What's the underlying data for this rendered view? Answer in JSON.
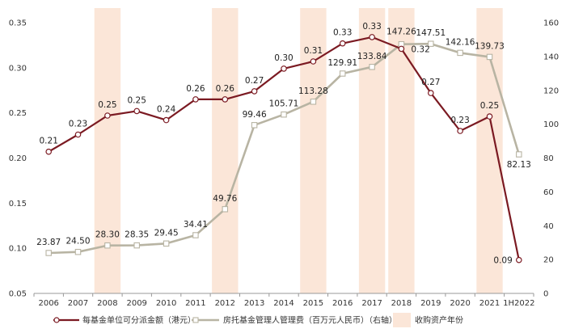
{
  "chart_data": {
    "type": "line",
    "categories": [
      "2006",
      "2007",
      "2008",
      "2009",
      "2010",
      "2011",
      "2012",
      "2013",
      "2014",
      "2015",
      "2016",
      "2017",
      "2018",
      "2019",
      "2020",
      "2021",
      "1H2022"
    ],
    "series": [
      {
        "name": "每基金单位可分派金额（港元）",
        "axis": "left",
        "color": "#7b1a22",
        "marker": "circle",
        "values": [
          0.21,
          0.23,
          0.25,
          0.25,
          0.24,
          0.26,
          0.26,
          0.27,
          0.3,
          0.31,
          0.33,
          0.33,
          0.32,
          0.27,
          0.23,
          0.25,
          0.09
        ],
        "plot_values": [
          0.207,
          0.226,
          0.247,
          0.252,
          0.242,
          0.265,
          0.265,
          0.274,
          0.299,
          0.307,
          0.327,
          0.334,
          0.321,
          0.272,
          0.23,
          0.246,
          0.087
        ],
        "labels": [
          "0.21",
          "0.23",
          "0.25",
          "0.25",
          "0.24",
          "0.26",
          "0.26",
          "0.27",
          "0.30",
          "0.31",
          "0.33",
          "0.33",
          "0.32",
          "0.27",
          "0.23",
          "0.25",
          "0.09"
        ]
      },
      {
        "name": "房托基金管理人管理费（百万元人民币）（右轴）",
        "axis": "right",
        "color": "#b8b4a3",
        "marker": "square",
        "values": [
          23.87,
          24.5,
          28.3,
          28.35,
          29.45,
          34.41,
          49.76,
          99.46,
          105.71,
          113.28,
          129.91,
          133.84,
          147.26,
          147.51,
          142.16,
          139.73,
          82.13
        ],
        "labels": [
          "23.87",
          "24.50",
          "28.30",
          "28.35",
          "29.45",
          "34.41",
          "49.76",
          "99.46",
          "105.71",
          "113.28",
          "129.91",
          "133.84",
          "147.26",
          "147.51",
          "142.16",
          "139.73",
          "82.13"
        ]
      }
    ],
    "highlight_years": [
      "2008",
      "2012",
      "2015",
      "2017",
      "2018",
      "2021"
    ],
    "highlight_color": "#fbe6d8",
    "highlight_name": "收购资产年份",
    "left_axis": {
      "ylim": [
        0.05,
        0.35
      ],
      "ticks": [
        "0.05",
        "0.10",
        "0.15",
        "0.20",
        "0.25",
        "0.30",
        "0.35"
      ]
    },
    "right_axis": {
      "ylim": [
        0,
        160
      ],
      "ticks": [
        "0",
        "20",
        "40",
        "60",
        "80",
        "100",
        "120",
        "140",
        "160"
      ]
    },
    "grid": false,
    "legend_position": "bottom"
  }
}
